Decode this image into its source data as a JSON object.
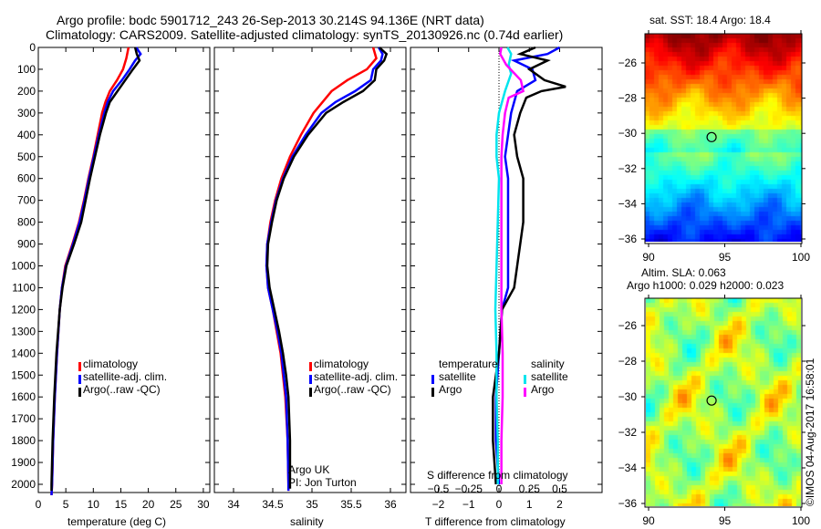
{
  "header": {
    "line1": "Argo profile: bodc 5901712_243 26-Sep-2013 30.214S 94.136E (NRT data)",
    "line2": "Climatology: CARS2009. Satellite-adjusted climatology: synTS_20130926.nc (0.74d earlier)"
  },
  "colors": {
    "climatology": "#ff0000",
    "satellite": "#0000ff",
    "argo": "#000000",
    "s_satellite": "#00e5ee",
    "s_argo": "#ff00ff"
  },
  "chart_data": [
    {
      "type": "line",
      "xlabel": "temperature (deg C)",
      "ylabel": "",
      "xlim": [
        -1,
        31
      ],
      "ylim": [
        2070,
        0
      ],
      "xticks": [
        0,
        5,
        10,
        15,
        20,
        25,
        30
      ],
      "yticks": [
        0,
        100,
        200,
        300,
        400,
        500,
        600,
        700,
        800,
        900,
        1000,
        1100,
        1200,
        1300,
        1400,
        1500,
        1600,
        1700,
        1800,
        1900,
        2000
      ],
      "legend": [
        "climatology",
        "satellite-adj. clim.",
        "Argo(..raw -QC)"
      ],
      "series": [
        {
          "name": "climatology",
          "color": "#ff0000",
          "depth": [
            0,
            50,
            100,
            150,
            200,
            250,
            300,
            400,
            500,
            600,
            700,
            800,
            900,
            1000,
            1100,
            1200,
            1400,
            1600,
            1800,
            2000,
            2050
          ],
          "values": [
            16.4,
            16.0,
            15.4,
            14.3,
            13.0,
            12.2,
            11.6,
            10.8,
            10.0,
            9.1,
            8.3,
            7.4,
            6.2,
            4.9,
            4.3,
            3.9,
            3.4,
            3.0,
            2.7,
            2.5,
            2.4
          ]
        },
        {
          "name": "satellite-adj. clim.",
          "color": "#0000ff",
          "depth": [
            0,
            30,
            60,
            100,
            150,
            200,
            250,
            300,
            400,
            500,
            600,
            700,
            800,
            900,
            1000,
            1100,
            1200,
            1400,
            1600,
            1800,
            2000,
            2050
          ],
          "values": [
            17.8,
            18.6,
            17.6,
            16.6,
            15.2,
            13.6,
            12.6,
            12.0,
            11.0,
            10.1,
            9.2,
            8.4,
            7.5,
            6.3,
            5.0,
            4.3,
            3.9,
            3.4,
            3.0,
            2.7,
            2.5,
            2.4
          ]
        },
        {
          "name": "Argo(..raw -QC)",
          "color": "#000000",
          "depth": [
            0,
            30,
            60,
            100,
            150,
            200,
            250,
            300,
            400,
            500,
            600,
            700,
            800,
            900,
            1000,
            1100,
            1200,
            1400,
            1600,
            1800,
            2000,
            2030
          ],
          "values": [
            17.6,
            17.9,
            18.4,
            17.2,
            15.8,
            14.4,
            13.0,
            12.3,
            11.2,
            10.3,
            9.4,
            8.6,
            7.8,
            6.5,
            5.1,
            4.4,
            3.9,
            3.3,
            2.9,
            2.6,
            2.4,
            2.4
          ]
        }
      ]
    },
    {
      "type": "line",
      "xlabel": "salinity",
      "xlim": [
        33.75,
        36.15
      ],
      "ylim": [
        2070,
        0
      ],
      "xticks": [
        34,
        34.5,
        35,
        35.5,
        36
      ],
      "legend": [
        "climatology",
        "satellite-adj. clim.",
        "Argo(..raw -QC)"
      ],
      "annotation": [
        "Argo UK",
        "PI: Jon Turton"
      ],
      "series": [
        {
          "name": "climatology",
          "color": "#ff0000",
          "depth": [
            0,
            50,
            100,
            150,
            200,
            300,
            400,
            500,
            600,
            700,
            800,
            900,
            1000,
            1100,
            1200,
            1300,
            1400,
            1500,
            1600,
            1800,
            2000,
            2030
          ],
          "values": [
            35.78,
            35.82,
            35.7,
            35.45,
            35.25,
            35.02,
            34.86,
            34.72,
            34.61,
            34.53,
            34.47,
            34.43,
            34.42,
            34.44,
            34.5,
            34.55,
            34.6,
            34.63,
            34.66,
            34.69,
            34.7,
            34.7
          ]
        },
        {
          "name": "satellite-adj. clim.",
          "color": "#0000ff",
          "depth": [
            0,
            30,
            60,
            100,
            150,
            200,
            250,
            300,
            400,
            500,
            600,
            700,
            800,
            900,
            1000,
            1100,
            1200,
            1300,
            1400,
            1500,
            1600,
            1800,
            2000,
            2030
          ],
          "values": [
            35.85,
            35.9,
            35.88,
            35.78,
            35.75,
            35.55,
            35.3,
            35.12,
            34.92,
            34.75,
            34.63,
            34.54,
            34.48,
            34.43,
            34.42,
            34.44,
            34.5,
            34.56,
            34.61,
            34.64,
            34.67,
            34.69,
            34.7,
            34.7
          ]
        },
        {
          "name": "Argo(..raw -QC)",
          "color": "#000000",
          "depth": [
            0,
            30,
            60,
            100,
            150,
            200,
            250,
            300,
            400,
            500,
            600,
            700,
            800,
            900,
            1000,
            1100,
            1200,
            1300,
            1400,
            1500,
            1600,
            1800,
            2000,
            2020
          ],
          "values": [
            35.86,
            35.95,
            35.92,
            35.82,
            35.8,
            35.65,
            35.4,
            35.18,
            34.95,
            34.77,
            34.64,
            34.55,
            34.49,
            34.44,
            34.43,
            34.46,
            34.52,
            34.58,
            34.63,
            34.67,
            34.7,
            34.72,
            34.72,
            34.72
          ]
        }
      ]
    },
    {
      "type": "line",
      "xlabel": "T difference from climatology",
      "x2label": "S difference from climatology",
      "xlim": [
        -3,
        3
      ],
      "x2lim": [
        -0.75,
        0.75
      ],
      "ylim": [
        2070,
        0
      ],
      "xticks": [
        -2,
        -1,
        0,
        1,
        2
      ],
      "x2ticks": [
        "-0.5",
        "-0.25",
        "0",
        "0.25",
        "0.5"
      ],
      "legend_titles": [
        "temperature",
        "salinity"
      ],
      "legend": [
        "satellite",
        "Argo",
        "satellite",
        "Argo"
      ],
      "series": [
        {
          "name": "T satellite",
          "color": "#0000ff",
          "depth": [
            0,
            30,
            60,
            100,
            150,
            200,
            250,
            300,
            400,
            500,
            600,
            700,
            800,
            900,
            1000,
            1100,
            1200,
            1400,
            1600,
            1800,
            2000
          ],
          "values": [
            2.0,
            1.6,
            0.5,
            1.1,
            1.2,
            0.6,
            0.5,
            0.4,
            0.3,
            0.2,
            0.3,
            0.3,
            0.3,
            0.3,
            0.3,
            0.3,
            0.1,
            0.0,
            -0.1,
            -0.1,
            0.0
          ]
        },
        {
          "name": "T Argo",
          "color": "#000000",
          "depth": [
            0,
            30,
            60,
            100,
            150,
            180,
            200,
            230,
            300,
            400,
            500,
            600,
            700,
            800,
            900,
            1000,
            1100,
            1200,
            1400,
            1600,
            1800,
            2000
          ],
          "values": [
            1.2,
            0.7,
            1.6,
            1.0,
            1.5,
            2.2,
            1.4,
            0.9,
            0.7,
            0.5,
            0.6,
            0.8,
            0.8,
            0.8,
            0.7,
            0.6,
            0.5,
            0.1,
            0.0,
            -0.2,
            -0.2,
            -0.1
          ]
        },
        {
          "name": "S satellite",
          "color": "#00e5ee",
          "depth": [
            0,
            30,
            80,
            120,
            200,
            300,
            400,
            500,
            600,
            800,
            1000,
            1200,
            1400,
            1600,
            1800,
            2000
          ],
          "values": [
            0.07,
            0.1,
            0.08,
            0.1,
            0.05,
            0.0,
            -0.02,
            -0.02,
            0.0,
            -0.01,
            -0.02,
            -0.03,
            -0.02,
            -0.02,
            -0.01,
            -0.01
          ]
        },
        {
          "name": "S Argo",
          "color": "#ff00ff",
          "depth": [
            0,
            30,
            80,
            150,
            200,
            230,
            300,
            400,
            500,
            600,
            800,
            1000,
            1200,
            1400,
            1600,
            1800,
            2000
          ],
          "values": [
            0.02,
            0.01,
            0.06,
            0.18,
            0.2,
            0.08,
            0.05,
            0.03,
            0.02,
            0.02,
            0.02,
            0.02,
            0.02,
            0.03,
            0.03,
            0.02,
            0.02
          ]
        }
      ]
    }
  ],
  "maps": [
    {
      "title": "sat. SST: 18.4  Argo: 18.4",
      "yticks": [
        "-26",
        "-28",
        "-30",
        "-32",
        "-34",
        "-36"
      ],
      "xticks": [
        "90",
        "95",
        "100"
      ],
      "marker": {
        "lon": 94.136,
        "lat": -30.214
      }
    },
    {
      "title": "Altim. SLA: 0.063",
      "subtitle": "Argo h1000: 0.029 h2000: 0.023",
      "yticks": [
        "-26",
        "-28",
        "-30",
        "-32",
        "-34",
        "-36"
      ],
      "xticks": [
        "90",
        "95",
        "100"
      ],
      "marker": {
        "lon": 94.136,
        "lat": -30.214
      }
    }
  ],
  "footer": {
    "stamp": "©IMOS 04-Aug-2017 16:58:01"
  }
}
